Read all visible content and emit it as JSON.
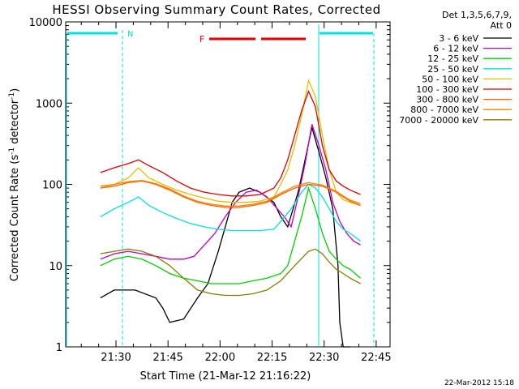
{
  "chart_data": {
    "type": "line",
    "title": "HESSI Observing Summary Count Rates, Corrected",
    "xlabel": "Start Time (21-Mar-12 21:16:22)",
    "ylabel_main": "Corrected Count Rate (s",
    "ylabel_sup1": "-1",
    "ylabel_mid": " detector",
    "ylabel_sup2": "-1",
    "ylabel_end": ")",
    "ylabel": "Corrected Count Rate (s^-1 detector^-1)",
    "y_scale": "log",
    "ylim": [
      1,
      10000
    ],
    "xlim": [
      0,
      93.5
    ],
    "y_ticks": [
      "1",
      "10",
      "100",
      "1000",
      "10000"
    ],
    "x_ticks": [
      {
        "t": 14.5,
        "label": "21:30"
      },
      {
        "t": 29.5,
        "label": "21:45"
      },
      {
        "t": 44.5,
        "label": "22:00"
      },
      {
        "t": 59.5,
        "label": "22:15"
      },
      {
        "t": 74.5,
        "label": "22:30"
      },
      {
        "t": 89.5,
        "label": "22:45"
      }
    ],
    "legend_header": [
      "Det 1,3,5,6,7,9,",
      "Att 0"
    ],
    "series": [
      {
        "name": "3 - 6 keV",
        "color": "#000000",
        "points": [
          [
            10,
            4
          ],
          [
            14,
            5
          ],
          [
            20,
            5
          ],
          [
            26,
            4
          ],
          [
            28,
            3
          ],
          [
            30,
            2
          ],
          [
            34,
            2.2
          ],
          [
            38,
            4
          ],
          [
            41,
            6
          ],
          [
            44,
            15
          ],
          [
            46,
            30
          ],
          [
            48,
            60
          ],
          [
            50,
            80
          ],
          [
            53,
            90
          ],
          [
            56,
            80
          ],
          [
            60,
            60
          ],
          [
            62,
            40
          ],
          [
            64,
            30
          ],
          [
            67,
            80
          ],
          [
            69,
            200
          ],
          [
            71,
            500
          ],
          [
            73,
            250
          ],
          [
            75,
            120
          ],
          [
            77,
            50
          ],
          [
            78.5,
            10
          ],
          [
            79,
            2
          ],
          [
            80,
            1
          ],
          [
            82,
            1
          ]
        ]
      },
      {
        "name": "6 - 12 keV",
        "color": "#c000c0",
        "points": [
          [
            10,
            12
          ],
          [
            14,
            14
          ],
          [
            18,
            15
          ],
          [
            22,
            14
          ],
          [
            26,
            13
          ],
          [
            30,
            12
          ],
          [
            34,
            12
          ],
          [
            37,
            13
          ],
          [
            40,
            18
          ],
          [
            43,
            25
          ],
          [
            46,
            40
          ],
          [
            49,
            60
          ],
          [
            52,
            80
          ],
          [
            55,
            85
          ],
          [
            58,
            70
          ],
          [
            61,
            50
          ],
          [
            63,
            40
          ],
          [
            65,
            30
          ],
          [
            67,
            70
          ],
          [
            69,
            180
          ],
          [
            71,
            550
          ],
          [
            73,
            300
          ],
          [
            75,
            150
          ],
          [
            77,
            60
          ],
          [
            79,
            35
          ],
          [
            81,
            25
          ],
          [
            83,
            20
          ],
          [
            85,
            18
          ]
        ]
      },
      {
        "name": "12 - 25 keV",
        "color": "#00d000",
        "points": [
          [
            10,
            10
          ],
          [
            14,
            12
          ],
          [
            18,
            13
          ],
          [
            22,
            12
          ],
          [
            26,
            10
          ],
          [
            30,
            8
          ],
          [
            34,
            7
          ],
          [
            38,
            6.5
          ],
          [
            42,
            6
          ],
          [
            46,
            6
          ],
          [
            50,
            6
          ],
          [
            54,
            6.5
          ],
          [
            58,
            7
          ],
          [
            62,
            8
          ],
          [
            64,
            10
          ],
          [
            66,
            20
          ],
          [
            68,
            40
          ],
          [
            70,
            90
          ],
          [
            72,
            50
          ],
          [
            74,
            25
          ],
          [
            76,
            15
          ],
          [
            78,
            12
          ],
          [
            80,
            10
          ],
          [
            82,
            9
          ],
          [
            85,
            7
          ]
        ]
      },
      {
        "name": "25 - 50 keV",
        "color": "#00e0e0",
        "points": [
          [
            10,
            40
          ],
          [
            14,
            50
          ],
          [
            18,
            60
          ],
          [
            21,
            70
          ],
          [
            24,
            55
          ],
          [
            28,
            45
          ],
          [
            32,
            38
          ],
          [
            36,
            33
          ],
          [
            40,
            30
          ],
          [
            44,
            28
          ],
          [
            48,
            27
          ],
          [
            52,
            27
          ],
          [
            56,
            27
          ],
          [
            60,
            28
          ],
          [
            62,
            35
          ],
          [
            65,
            50
          ],
          [
            68,
            80
          ],
          [
            70,
            100
          ],
          [
            72,
            90
          ],
          [
            74,
            70
          ],
          [
            76,
            50
          ],
          [
            78,
            35
          ],
          [
            80,
            28
          ],
          [
            82,
            25
          ],
          [
            85,
            20
          ]
        ]
      },
      {
        "name": "50 - 100 keV",
        "color": "#e0c000",
        "points": [
          [
            10,
            90
          ],
          [
            14,
            100
          ],
          [
            18,
            120
          ],
          [
            21,
            160
          ],
          [
            24,
            120
          ],
          [
            28,
            100
          ],
          [
            32,
            85
          ],
          [
            36,
            75
          ],
          [
            40,
            68
          ],
          [
            44,
            62
          ],
          [
            48,
            60
          ],
          [
            52,
            60
          ],
          [
            56,
            62
          ],
          [
            60,
            70
          ],
          [
            62,
            100
          ],
          [
            64,
            150
          ],
          [
            66,
            300
          ],
          [
            68,
            700
          ],
          [
            70,
            1900
          ],
          [
            72,
            1200
          ],
          [
            74,
            400
          ],
          [
            76,
            150
          ],
          [
            78,
            80
          ],
          [
            80,
            65
          ],
          [
            82,
            60
          ],
          [
            85,
            55
          ]
        ]
      },
      {
        "name": "100 - 300 keV",
        "color": "#e00000",
        "points": [
          [
            10,
            140
          ],
          [
            14,
            160
          ],
          [
            18,
            180
          ],
          [
            21,
            200
          ],
          [
            24,
            170
          ],
          [
            28,
            140
          ],
          [
            32,
            110
          ],
          [
            36,
            90
          ],
          [
            40,
            80
          ],
          [
            44,
            75
          ],
          [
            48,
            72
          ],
          [
            52,
            72
          ],
          [
            56,
            75
          ],
          [
            60,
            90
          ],
          [
            62,
            120
          ],
          [
            64,
            200
          ],
          [
            66,
            400
          ],
          [
            68,
            800
          ],
          [
            70,
            1400
          ],
          [
            72,
            900
          ],
          [
            74,
            300
          ],
          [
            76,
            150
          ],
          [
            78,
            110
          ],
          [
            80,
            95
          ],
          [
            82,
            85
          ],
          [
            85,
            75
          ]
        ]
      },
      {
        "name": "300 - 800 keV",
        "color": "#ff6000",
        "points": [
          [
            10,
            90
          ],
          [
            14,
            95
          ],
          [
            18,
            105
          ],
          [
            22,
            110
          ],
          [
            26,
            100
          ],
          [
            30,
            85
          ],
          [
            34,
            70
          ],
          [
            38,
            60
          ],
          [
            42,
            55
          ],
          [
            46,
            52
          ],
          [
            50,
            52
          ],
          [
            54,
            55
          ],
          [
            58,
            60
          ],
          [
            62,
            75
          ],
          [
            66,
            90
          ],
          [
            70,
            100
          ],
          [
            74,
            95
          ],
          [
            78,
            80
          ],
          [
            80,
            70
          ],
          [
            82,
            62
          ],
          [
            85,
            55
          ]
        ]
      },
      {
        "name": "800 - 7000 keV",
        "color": "#ff8000",
        "points": [
          [
            10,
            95
          ],
          [
            14,
            100
          ],
          [
            18,
            108
          ],
          [
            22,
            112
          ],
          [
            26,
            102
          ],
          [
            30,
            88
          ],
          [
            34,
            72
          ],
          [
            38,
            62
          ],
          [
            42,
            57
          ],
          [
            46,
            54
          ],
          [
            50,
            54
          ],
          [
            54,
            57
          ],
          [
            58,
            62
          ],
          [
            62,
            78
          ],
          [
            66,
            95
          ],
          [
            70,
            105
          ],
          [
            74,
            98
          ],
          [
            78,
            82
          ],
          [
            80,
            72
          ],
          [
            82,
            64
          ],
          [
            85,
            58
          ]
        ]
      },
      {
        "name": "7000 - 20000 keV",
        "color": "#808000",
        "points": [
          [
            10,
            14
          ],
          [
            14,
            15
          ],
          [
            18,
            16
          ],
          [
            22,
            15
          ],
          [
            26,
            13
          ],
          [
            30,
            10
          ],
          [
            34,
            7
          ],
          [
            38,
            5
          ],
          [
            42,
            4.5
          ],
          [
            46,
            4.3
          ],
          [
            50,
            4.3
          ],
          [
            54,
            4.5
          ],
          [
            58,
            5
          ],
          [
            62,
            6.5
          ],
          [
            66,
            10
          ],
          [
            70,
            15
          ],
          [
            72,
            16
          ],
          [
            74,
            14
          ],
          [
            76,
            11
          ],
          [
            78,
            9
          ],
          [
            80,
            8
          ],
          [
            82,
            7
          ],
          [
            85,
            6
          ]
        ]
      }
    ],
    "annotations": [
      {
        "label": "N",
        "color": "#00e0e0"
      },
      {
        "label": "F",
        "color": "#e00000"
      }
    ],
    "footer_date": "22-Mar-2012 15:18"
  }
}
